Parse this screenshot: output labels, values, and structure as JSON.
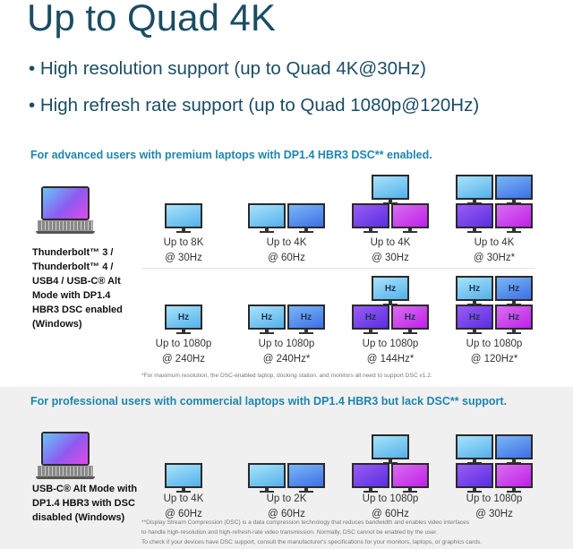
{
  "title": "Up to Quad 4K",
  "bullets": [
    "• High resolution support (up to Quad 4K@30Hz)",
    "• High refresh rate support (up to Quad 1080p@120Hz)"
  ],
  "section1": {
    "heading": "For advanced users with premium laptops with DP1.4 HBR3 DSC** enabled.",
    "device": [
      "Thunderbolt™ 3 /",
      "Thunderbolt™ 4 /",
      "USB4 / USB-C® Alt",
      "Mode with DP1.4",
      "HBR3 DSC enabled",
      "(Windows)"
    ],
    "row1": [
      [
        "Up to 8K",
        "@ 30Hz"
      ],
      [
        "Up to 4K",
        "@ 60Hz"
      ],
      [
        "Up to 4K",
        "@ 30Hz"
      ],
      [
        "Up to 4K",
        "@ 30Hz*"
      ]
    ],
    "row2": [
      [
        "Up to 1080p",
        "@ 240Hz"
      ],
      [
        "Up to 1080p",
        "@ 240Hz*"
      ],
      [
        "Up to 1080p",
        "@ 144Hz*"
      ],
      [
        "Up to 1080p",
        "@ 120Hz*"
      ]
    ],
    "hz_label": "Hz",
    "footnote": "*For maximum resolution, the DSC-enabled laptop, docking station, and monitors all need to support DSC v1.2."
  },
  "section2": {
    "heading": "For professional users with commercial laptops with DP1.4 HBR3 but lack DSC** support.",
    "device": [
      "USB-C® Alt Mode with",
      "DP1.4 HBR3 with DSC",
      "disabled (Windows)"
    ],
    "row": [
      [
        "Up to 4K",
        "@ 60Hz"
      ],
      [
        "Up to 2K",
        "@ 60Hz"
      ],
      [
        "Up to 1080p",
        "@ 60Hz"
      ],
      [
        "Up to 1080p",
        "@ 30Hz"
      ]
    ],
    "footnote": [
      "**Display Stream Compression (DSC) is a data compression technology that reduces bandwidth and enables video interfaces",
      "to handle high-resolution and high-refresh-rate video transmission. Normally, DSC cannot be enabled by the user.",
      "To check if your devices have DSC support, consult the manufacturer's specifications for your monitors, laptops, or graphics cards."
    ]
  },
  "colors": {
    "title": "#1b4d63",
    "heading": "#1d86ad",
    "section2_bg": "#f0f0f0"
  }
}
